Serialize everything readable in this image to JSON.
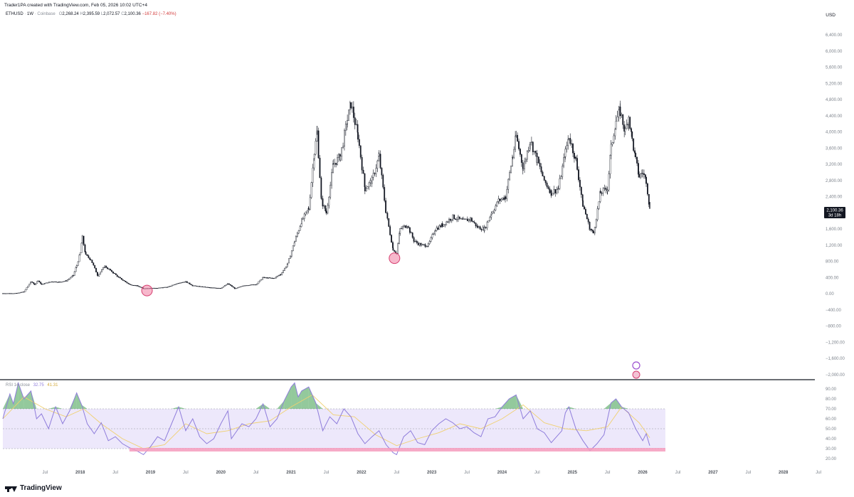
{
  "header": {
    "attribution": "Trader1PA created with TradingView.com, Feb 05, 2026 10:02 UTC+4"
  },
  "ohlc": {
    "symbol": "ETHUSD",
    "interval": "1W",
    "exchange": "Coinbase",
    "open_label": "O",
    "open": "2,268.24",
    "high_label": "H",
    "high": "2,395.59",
    "low_label": "L",
    "low": "2,072.57",
    "close_label": "C",
    "close": "2,100.36",
    "change": "−167.82 (−7.40%)"
  },
  "currency": "USD",
  "price_badge": {
    "price": "2,100.36",
    "countdown": "3d 18h"
  },
  "rsi_legend": {
    "label": "RSI 14 close",
    "rsi": "32.75",
    "ma": "41.31"
  },
  "footer": {
    "brand": "TradingView"
  },
  "colors": {
    "candle": "#131722",
    "rsi_line": "#8f7ddb",
    "rsi_ma": "#f0d070",
    "rsi_band": "#ede8fb",
    "marker": "#f07ea3",
    "ob_fill": "#3a9c4a",
    "badge_bg": "#131722",
    "zone": "#f49bbd"
  },
  "chart_data": [
    {
      "type": "candlestick",
      "title": "ETHUSD · 1W · Coinbase",
      "series": [
        {
          "name": "ETHUSD",
          "values": [
            [
              2016.9,
              10
            ],
            [
              2017.0,
              10
            ],
            [
              2017.1,
              13
            ],
            [
              2017.2,
              50
            ],
            [
              2017.3,
              300
            ],
            [
              2017.35,
              230
            ],
            [
              2017.4,
              330
            ],
            [
              2017.45,
              230
            ],
            [
              2017.5,
              260
            ],
            [
              2017.6,
              300
            ],
            [
              2017.7,
              290
            ],
            [
              2017.8,
              320
            ],
            [
              2017.9,
              450
            ],
            [
              2017.95,
              700
            ],
            [
              2018.0,
              1000
            ],
            [
              2018.03,
              1390
            ],
            [
              2018.08,
              950
            ],
            [
              2018.15,
              850
            ],
            [
              2018.25,
              450
            ],
            [
              2018.35,
              680
            ],
            [
              2018.45,
              550
            ],
            [
              2018.55,
              400
            ],
            [
              2018.7,
              230
            ],
            [
              2018.8,
              200
            ],
            [
              2018.9,
              130
            ],
            [
              2019.0,
              140
            ],
            [
              2019.1,
              140
            ],
            [
              2019.25,
              170
            ],
            [
              2019.4,
              270
            ],
            [
              2019.5,
              300
            ],
            [
              2019.6,
              200
            ],
            [
              2019.7,
              180
            ],
            [
              2019.85,
              150
            ],
            [
              2020.0,
              140
            ],
            [
              2020.1,
              250
            ],
            [
              2020.2,
              130
            ],
            [
              2020.35,
              210
            ],
            [
              2020.5,
              230
            ],
            [
              2020.6,
              400
            ],
            [
              2020.75,
              380
            ],
            [
              2020.85,
              480
            ],
            [
              2020.95,
              740
            ],
            [
              2021.05,
              1300
            ],
            [
              2021.15,
              1800
            ],
            [
              2021.25,
              2100
            ],
            [
              2021.33,
              3500
            ],
            [
              2021.37,
              4000
            ],
            [
              2021.43,
              2300
            ],
            [
              2021.5,
              2000
            ],
            [
              2021.6,
              3200
            ],
            [
              2021.7,
              3400
            ],
            [
              2021.8,
              4300
            ],
            [
              2021.85,
              4700
            ],
            [
              2021.95,
              3900
            ],
            [
              2022.05,
              2600
            ],
            [
              2022.15,
              2800
            ],
            [
              2022.25,
              3400
            ],
            [
              2022.35,
              2000
            ],
            [
              2022.45,
              1100
            ],
            [
              2022.5,
              1000
            ],
            [
              2022.55,
              1600
            ],
            [
              2022.65,
              1700
            ],
            [
              2022.75,
              1300
            ],
            [
              2022.85,
              1200
            ],
            [
              2022.95,
              1200
            ],
            [
              2023.05,
              1600
            ],
            [
              2023.15,
              1700
            ],
            [
              2023.3,
              1900
            ],
            [
              2023.45,
              1800
            ],
            [
              2023.55,
              1850
            ],
            [
              2023.65,
              1650
            ],
            [
              2023.75,
              1600
            ],
            [
              2023.85,
              2000
            ],
            [
              2023.95,
              2300
            ],
            [
              2024.05,
              2400
            ],
            [
              2024.15,
              3400
            ],
            [
              2024.2,
              3900
            ],
            [
              2024.3,
              3100
            ],
            [
              2024.4,
              3800
            ],
            [
              2024.5,
              3300
            ],
            [
              2024.6,
              2800
            ],
            [
              2024.7,
              2500
            ],
            [
              2024.8,
              2600
            ],
            [
              2024.9,
              3500
            ],
            [
              2024.95,
              3900
            ],
            [
              2025.05,
              3300
            ],
            [
              2025.15,
              2200
            ],
            [
              2025.25,
              1600
            ],
            [
              2025.3,
              1500
            ],
            [
              2025.4,
              2500
            ],
            [
              2025.5,
              2600
            ],
            [
              2025.55,
              3600
            ],
            [
              2025.62,
              4300
            ],
            [
              2025.68,
              4500
            ],
            [
              2025.75,
              4000
            ],
            [
              2025.8,
              4400
            ],
            [
              2025.85,
              3800
            ],
            [
              2025.9,
              3300
            ],
            [
              2025.95,
              2900
            ],
            [
              2026.0,
              3000
            ],
            [
              2026.05,
              2800
            ],
            [
              2026.1,
              2100
            ]
          ]
        }
      ],
      "x_ticks": [
        "Jul",
        "2018",
        "Jul",
        "2019",
        "Jul",
        "2020",
        "Jul",
        "2021",
        "Jul",
        "2022",
        "Jul",
        "2023",
        "Jul",
        "2024",
        "Jul",
        "2025",
        "Jul",
        "2026",
        "Jul",
        "2027",
        "Jul",
        "2028",
        "Jul"
      ],
      "y_ticks": [
        "6,400.00",
        "6,000.00",
        "5,600.00",
        "5,200.00",
        "4,800.00",
        "4,400.00",
        "4,000.00",
        "3,600.00",
        "3,200.00",
        "2,800.00",
        "2,400.00",
        "2,000.00",
        "1,600.00",
        "1,200.00",
        "800.00",
        "400.00",
        "0.00",
        "−400.00",
        "−800.00",
        "−1,200.00",
        "−1,600.00",
        "−2,000.00"
      ],
      "ylim": [
        -2000,
        6800
      ],
      "last_price": 2100.36,
      "highlighted_lows": [
        {
          "x": 2018.95,
          "y": 80
        },
        {
          "x": 2022.47,
          "y": 880
        }
      ]
    },
    {
      "type": "line",
      "title": "RSI 14 close",
      "series": [
        {
          "name": "RSI",
          "values": [
            [
              2016.9,
              60
            ],
            [
              2017.0,
              85
            ],
            [
              2017.05,
              75
            ],
            [
              2017.12,
              96
            ],
            [
              2017.2,
              80
            ],
            [
              2017.3,
              88
            ],
            [
              2017.38,
              60
            ],
            [
              2017.45,
              65
            ],
            [
              2017.55,
              50
            ],
            [
              2017.65,
              72
            ],
            [
              2017.75,
              55
            ],
            [
              2017.85,
              68
            ],
            [
              2017.95,
              86
            ],
            [
              2018.02,
              74
            ],
            [
              2018.1,
              55
            ],
            [
              2018.2,
              45
            ],
            [
              2018.3,
              56
            ],
            [
              2018.4,
              38
            ],
            [
              2018.5,
              42
            ],
            [
              2018.6,
              35
            ],
            [
              2018.7,
              31
            ],
            [
              2018.8,
              28
            ],
            [
              2018.9,
              24
            ],
            [
              2019.0,
              32
            ],
            [
              2019.1,
              42
            ],
            [
              2019.2,
              38
            ],
            [
              2019.3,
              55
            ],
            [
              2019.4,
              72
            ],
            [
              2019.5,
              48
            ],
            [
              2019.6,
              60
            ],
            [
              2019.7,
              42
            ],
            [
              2019.8,
              35
            ],
            [
              2019.9,
              40
            ],
            [
              2020.0,
              55
            ],
            [
              2020.1,
              68
            ],
            [
              2020.15,
              40
            ],
            [
              2020.2,
              45
            ],
            [
              2020.3,
              55
            ],
            [
              2020.4,
              52
            ],
            [
              2020.5,
              60
            ],
            [
              2020.6,
              75
            ],
            [
              2020.7,
              52
            ],
            [
              2020.8,
              60
            ],
            [
              2020.9,
              78
            ],
            [
              2021.0,
              92
            ],
            [
              2021.05,
              96
            ],
            [
              2021.1,
              82
            ],
            [
              2021.15,
              88
            ],
            [
              2021.25,
              92
            ],
            [
              2021.35,
              76
            ],
            [
              2021.45,
              48
            ],
            [
              2021.55,
              62
            ],
            [
              2021.65,
              55
            ],
            [
              2021.75,
              70
            ],
            [
              2021.85,
              62
            ],
            [
              2021.95,
              45
            ],
            [
              2022.05,
              35
            ],
            [
              2022.15,
              42
            ],
            [
              2022.25,
              48
            ],
            [
              2022.35,
              34
            ],
            [
              2022.45,
              26
            ],
            [
              2022.5,
              24
            ],
            [
              2022.6,
              42
            ],
            [
              2022.7,
              48
            ],
            [
              2022.8,
              36
            ],
            [
              2022.9,
              34
            ],
            [
              2023.0,
              48
            ],
            [
              2023.1,
              55
            ],
            [
              2023.2,
              60
            ],
            [
              2023.3,
              56
            ],
            [
              2023.4,
              50
            ],
            [
              2023.5,
              52
            ],
            [
              2023.6,
              46
            ],
            [
              2023.7,
              42
            ],
            [
              2023.8,
              60
            ],
            [
              2023.9,
              62
            ],
            [
              2024.0,
              72
            ],
            [
              2024.1,
              80
            ],
            [
              2024.2,
              84
            ],
            [
              2024.3,
              60
            ],
            [
              2024.4,
              68
            ],
            [
              2024.5,
              50
            ],
            [
              2024.6,
              46
            ],
            [
              2024.7,
              36
            ],
            [
              2024.8,
              44
            ],
            [
              2024.85,
              48
            ],
            [
              2024.9,
              66
            ],
            [
              2024.95,
              72
            ],
            [
              2025.05,
              50
            ],
            [
              2025.15,
              38
            ],
            [
              2025.25,
              28
            ],
            [
              2025.35,
              35
            ],
            [
              2025.45,
              44
            ],
            [
              2025.55,
              76
            ],
            [
              2025.62,
              80
            ],
            [
              2025.7,
              72
            ],
            [
              2025.8,
              66
            ],
            [
              2025.9,
              50
            ],
            [
              2025.95,
              44
            ],
            [
              2026.0,
              38
            ],
            [
              2026.05,
              45
            ],
            [
              2026.1,
              33
            ]
          ]
        },
        {
          "name": "RSI-based MA",
          "values": [
            [
              2016.9,
              60
            ],
            [
              2017.2,
              82
            ],
            [
              2017.5,
              70
            ],
            [
              2017.8,
              62
            ],
            [
              2018.05,
              70
            ],
            [
              2018.3,
              55
            ],
            [
              2018.6,
              40
            ],
            [
              2018.9,
              30
            ],
            [
              2019.2,
              34
            ],
            [
              2019.5,
              55
            ],
            [
              2019.8,
              45
            ],
            [
              2020.1,
              48
            ],
            [
              2020.4,
              55
            ],
            [
              2020.7,
              58
            ],
            [
              2021.0,
              72
            ],
            [
              2021.3,
              84
            ],
            [
              2021.6,
              64
            ],
            [
              2021.9,
              62
            ],
            [
              2022.2,
              44
            ],
            [
              2022.5,
              33
            ],
            [
              2022.8,
              40
            ],
            [
              2023.1,
              46
            ],
            [
              2023.4,
              55
            ],
            [
              2023.7,
              50
            ],
            [
              2024.0,
              60
            ],
            [
              2024.3,
              74
            ],
            [
              2024.6,
              56
            ],
            [
              2024.9,
              50
            ],
            [
              2025.2,
              48
            ],
            [
              2025.5,
              52
            ],
            [
              2025.7,
              72
            ],
            [
              2025.95,
              56
            ],
            [
              2026.1,
              41
            ]
          ]
        }
      ],
      "y_ticks": [
        "90.00",
        "80.00",
        "70.00",
        "60.00",
        "50.00",
        "40.00",
        "30.00",
        "20.00"
      ],
      "ylim": [
        15,
        95
      ],
      "overbought": 70,
      "oversold": 30
    }
  ]
}
